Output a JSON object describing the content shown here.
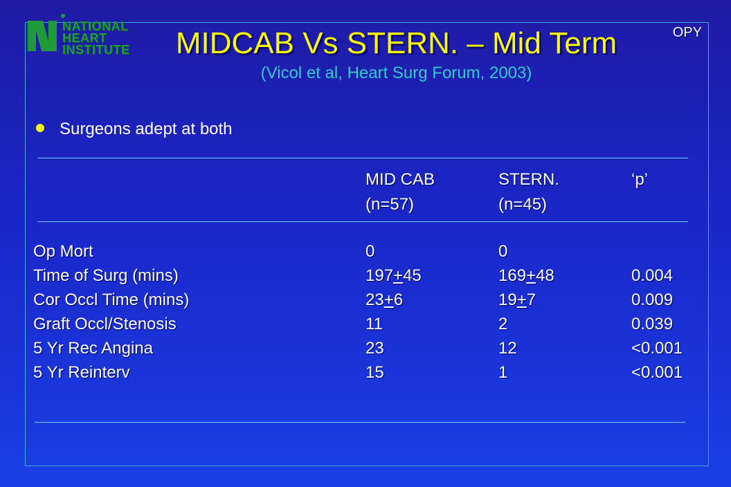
{
  "logo": {
    "line1": "NATIONAL",
    "line2": "HEART",
    "line3": "INSTITUTE"
  },
  "corner_tag": "OPY",
  "title": "MIDCAB Vs STERN. – Mid Term",
  "subtitle": "(Vicol et al, Heart Surg Forum, 2003)",
  "bullet": "Surgeons adept at both",
  "table": {
    "headers": [
      {
        "label": "MID CAB",
        "sub": "(n=57)"
      },
      {
        "label": "STERN.",
        "sub": "(n=45)"
      },
      {
        "label": "‘p’",
        "sub": ""
      }
    ],
    "rows": [
      {
        "label": "Op Mort",
        "midcab": {
          "a": "0",
          "pm": "",
          "b": ""
        },
        "stern": {
          "a": "0",
          "pm": "",
          "b": ""
        },
        "p": ""
      },
      {
        "label": "Time of Surg (mins)",
        "midcab": {
          "a": "197",
          "pm": "+",
          "b": "45"
        },
        "stern": {
          "a": "169",
          "pm": "+",
          "b": "48"
        },
        "p": "0.004"
      },
      {
        "label": "Cor Occl Time (mins)",
        "midcab": {
          "a": "23",
          "pm": "+",
          "b": "6"
        },
        "stern": {
          "a": "19",
          "pm": "+",
          "b": "7"
        },
        "p": "0.009"
      },
      {
        "label": "Graft Occl/Stenosis",
        "midcab": {
          "a": "11",
          "pm": "",
          "b": ""
        },
        "stern": {
          "a": "2",
          "pm": "",
          "b": ""
        },
        "p": "0.039"
      },
      {
        "label": "5 Yr Rec Angina",
        "midcab": {
          "a": "23",
          "pm": "",
          "b": ""
        },
        "stern": {
          "a": "12",
          "pm": "",
          "b": ""
        },
        "p": "<0.001"
      },
      {
        "label": "5 Yr Reinterv",
        "midcab": {
          "a": "15",
          "pm": "",
          "b": ""
        },
        "stern": {
          "a": "1",
          "pm": "",
          "b": ""
        },
        "p": "<0.001"
      }
    ]
  },
  "colors": {
    "title": "#ffff00",
    "subtitle": "#33cccc",
    "text": "#ffffff",
    "rule": "#6fd3f0",
    "logo": "#1f9b3a",
    "background": "#1a27c8"
  }
}
